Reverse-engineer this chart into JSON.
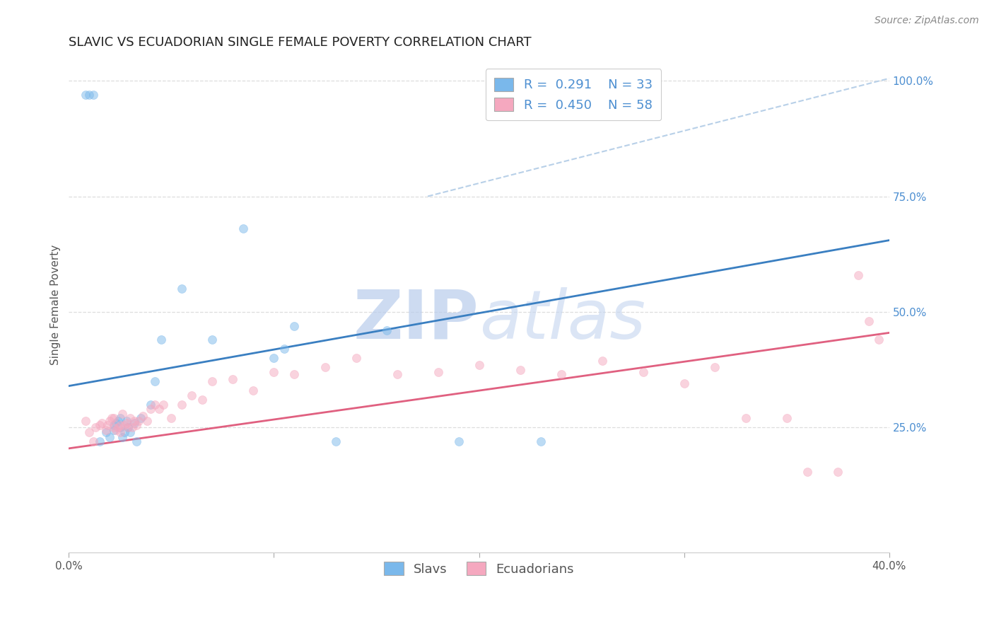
{
  "title": "SLAVIC VS ECUADORIAN SINGLE FEMALE POVERTY CORRELATION CHART",
  "source_text": "Source: ZipAtlas.com",
  "ylabel": "Single Female Poverty",
  "xlim": [
    0.0,
    0.4
  ],
  "ylim": [
    -0.02,
    1.05
  ],
  "x_ticks": [
    0.0,
    0.1,
    0.2,
    0.3,
    0.4
  ],
  "x_tick_labels": [
    "0.0%",
    "",
    "",
    "",
    "40.0%"
  ],
  "y_ticks_right": [
    0.25,
    0.5,
    0.75,
    1.0
  ],
  "y_tick_labels_right": [
    "25.0%",
    "50.0%",
    "75.0%",
    "100.0%"
  ],
  "slavic_color": "#7ab8eb",
  "ecuadorian_color": "#f5a8bf",
  "slavic_line_color": "#3a7fc1",
  "ecuadorian_line_color": "#e06080",
  "dashed_line_color": "#b8d0e8",
  "watermark_color": "#d0dff0",
  "slavic_x": [
    0.008,
    0.01,
    0.012,
    0.015,
    0.018,
    0.02,
    0.022,
    0.022,
    0.023,
    0.024,
    0.025,
    0.025,
    0.026,
    0.027,
    0.028,
    0.029,
    0.03,
    0.032,
    0.033,
    0.035,
    0.04,
    0.042,
    0.045,
    0.055,
    0.07,
    0.085,
    0.1,
    0.105,
    0.11,
    0.13,
    0.155,
    0.19,
    0.23
  ],
  "slavic_y": [
    0.97,
    0.97,
    0.97,
    0.22,
    0.24,
    0.23,
    0.255,
    0.245,
    0.26,
    0.265,
    0.25,
    0.27,
    0.23,
    0.24,
    0.265,
    0.25,
    0.24,
    0.26,
    0.22,
    0.27,
    0.3,
    0.35,
    0.44,
    0.55,
    0.44,
    0.68,
    0.4,
    0.42,
    0.47,
    0.22,
    0.46,
    0.22,
    0.22
  ],
  "ecuadorian_x": [
    0.008,
    0.01,
    0.012,
    0.013,
    0.015,
    0.016,
    0.018,
    0.019,
    0.02,
    0.021,
    0.022,
    0.022,
    0.023,
    0.024,
    0.025,
    0.025,
    0.026,
    0.027,
    0.028,
    0.029,
    0.03,
    0.031,
    0.032,
    0.033,
    0.034,
    0.036,
    0.038,
    0.04,
    0.042,
    0.044,
    0.046,
    0.05,
    0.055,
    0.06,
    0.065,
    0.07,
    0.08,
    0.09,
    0.1,
    0.11,
    0.125,
    0.14,
    0.16,
    0.18,
    0.2,
    0.22,
    0.24,
    0.26,
    0.28,
    0.3,
    0.315,
    0.33,
    0.35,
    0.36,
    0.375,
    0.385,
    0.39,
    0.395
  ],
  "ecuadorian_y": [
    0.265,
    0.24,
    0.22,
    0.25,
    0.255,
    0.26,
    0.245,
    0.255,
    0.265,
    0.27,
    0.25,
    0.27,
    0.245,
    0.25,
    0.255,
    0.24,
    0.28,
    0.255,
    0.26,
    0.25,
    0.27,
    0.25,
    0.265,
    0.255,
    0.265,
    0.275,
    0.265,
    0.29,
    0.3,
    0.29,
    0.3,
    0.27,
    0.3,
    0.32,
    0.31,
    0.35,
    0.355,
    0.33,
    0.37,
    0.365,
    0.38,
    0.4,
    0.365,
    0.37,
    0.385,
    0.375,
    0.365,
    0.395,
    0.37,
    0.345,
    0.38,
    0.27,
    0.27,
    0.155,
    0.155,
    0.58,
    0.48,
    0.44
  ],
  "slavic_line_x0": 0.0,
  "slavic_line_y0": 0.34,
  "slavic_line_x1": 0.4,
  "slavic_line_y1": 0.655,
  "ecuadorian_line_x0": 0.0,
  "ecuadorian_line_y0": 0.205,
  "ecuadorian_line_x1": 0.4,
  "ecuadorian_line_y1": 0.455,
  "dashed_line_x0": 0.175,
  "dashed_line_y0": 0.75,
  "dashed_line_x1": 0.4,
  "dashed_line_y1": 1.005,
  "background_color": "#ffffff",
  "grid_color": "#dddddd",
  "title_fontsize": 13,
  "axis_label_fontsize": 11,
  "tick_fontsize": 11,
  "legend_fontsize": 13,
  "dot_size": 75,
  "dot_alpha": 0.5,
  "dot_linewidth": 0.5
}
